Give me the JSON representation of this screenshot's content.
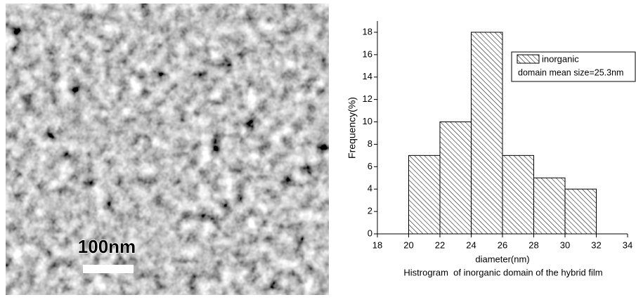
{
  "image": {
    "scale_label": "100nm"
  },
  "chart_data": {
    "type": "histogram",
    "bins": [
      20,
      22,
      24,
      26,
      28,
      30,
      32
    ],
    "series": [
      {
        "name": "inorganic",
        "color": "#000000",
        "values": [
          7,
          10,
          18,
          7,
          5,
          4
        ]
      }
    ],
    "annotation": "domain mean size=25.3nm",
    "xlabel": "diameter(nm)",
    "ylabel": "Frequency(%)",
    "caption": "Histrogram  of inorganic domain of the hybrid film",
    "xlim": [
      18,
      34
    ],
    "xticks": [
      18,
      20,
      22,
      24,
      26,
      28,
      30,
      32,
      34
    ],
    "ylim": [
      0,
      19
    ],
    "yticks": [
      0,
      2,
      4,
      6,
      8,
      10,
      12,
      14,
      16,
      18
    ],
    "legend": "upper right"
  }
}
